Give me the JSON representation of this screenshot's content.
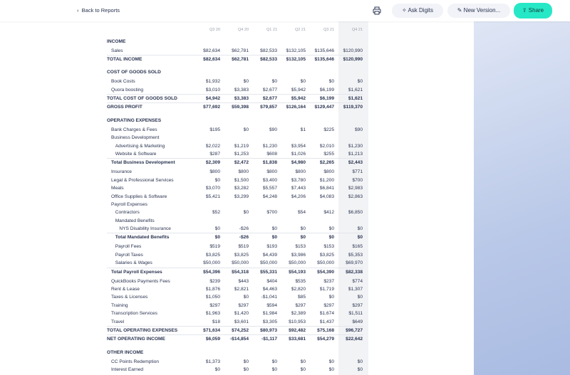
{
  "header": {
    "back": "Back to Reports",
    "buttons": [
      "Ask Digits",
      "New Version...",
      "Share"
    ]
  },
  "table": {
    "columns": [
      "Q3 20",
      "Q4 20",
      "Q1 21",
      "Q2 21",
      "Q3 21",
      "Q4 21"
    ],
    "rows": [
      {
        "label": "INCOME",
        "level": 0,
        "kind": "section"
      },
      {
        "label": "Sales",
        "level": 1,
        "kind": "item",
        "values": [
          "$82,634",
          "$62,781",
          "$82,533",
          "$132,105",
          "$135,646",
          "$120,990"
        ]
      },
      {
        "label": "TOTAL INCOME",
        "level": 0,
        "kind": "grand",
        "values": [
          "$82,634",
          "$62,781",
          "$82,533",
          "$132,105",
          "$135,646",
          "$120,990"
        ]
      },
      {
        "label": "COST OF GOODS SOLD",
        "level": 0,
        "kind": "section"
      },
      {
        "label": "Book Costs",
        "level": 1,
        "kind": "item",
        "values": [
          "$1,932",
          "$0",
          "$0",
          "$0",
          "$0",
          "$0"
        ]
      },
      {
        "label": "Quora boosting",
        "level": 1,
        "kind": "item",
        "values": [
          "$3,010",
          "$3,383",
          "$2,677",
          "$5,942",
          "$6,199",
          "$1,621"
        ]
      },
      {
        "label": "TOTAL COST OF GOODS SOLD",
        "level": 0,
        "kind": "grand",
        "values": [
          "$4,942",
          "$3,383",
          "$2,677",
          "$5,942",
          "$6,199",
          "$1,621"
        ]
      },
      {
        "label": "GROSS PROFIT",
        "level": 0,
        "kind": "grand",
        "values": [
          "$77,692",
          "$59,398",
          "$79,857",
          "$126,164",
          "$129,447",
          "$119,370"
        ]
      },
      {
        "label": "OPERATING EXPENSES",
        "level": 0,
        "kind": "section"
      },
      {
        "label": "Bank Charges & Fees",
        "level": 1,
        "kind": "item",
        "values": [
          "$195",
          "$0",
          "$90",
          "$1",
          "$225",
          "$90"
        ]
      },
      {
        "label": "Business Development",
        "level": 1,
        "kind": "item"
      },
      {
        "label": "Advertising & Marketing",
        "level": 2,
        "kind": "item",
        "values": [
          "$2,022",
          "$1,219",
          "$1,230",
          "$3,954",
          "$2,010",
          "$1,230"
        ]
      },
      {
        "label": "Website & Software",
        "level": 2,
        "kind": "item",
        "values": [
          "$287",
          "$1,253",
          "$608",
          "$1,026",
          "$255",
          "$1,213"
        ]
      },
      {
        "label": "Total Business Development",
        "level": 1,
        "kind": "total",
        "values": [
          "$2,309",
          "$2,472",
          "$1,838",
          "$4,980",
          "$2,265",
          "$2,443"
        ]
      },
      {
        "label": "Insurance",
        "level": 1,
        "kind": "item",
        "values": [
          "$800",
          "$800",
          "$800",
          "$800",
          "$800",
          "$771"
        ]
      },
      {
        "label": "Legal & Professional Services",
        "level": 1,
        "kind": "item",
        "values": [
          "$0",
          "$1,500",
          "$3,400",
          "$3,780",
          "$1,200",
          "$700"
        ]
      },
      {
        "label": "Meals",
        "level": 1,
        "kind": "item",
        "values": [
          "$3,070",
          "$3,282",
          "$5,557",
          "$7,443",
          "$6,841",
          "$2,983"
        ]
      },
      {
        "label": "Office Supplies & Software",
        "level": 1,
        "kind": "item",
        "values": [
          "$5,421",
          "$3,299",
          "$4,248",
          "$4,206",
          "$4,083",
          "$2,863"
        ]
      },
      {
        "label": "Payroll Expenses",
        "level": 1,
        "kind": "item"
      },
      {
        "label": "Contractors",
        "level": 2,
        "kind": "item",
        "values": [
          "$52",
          "$0",
          "$700",
          "$54",
          "$412",
          "$6,850"
        ]
      },
      {
        "label": "Mandated Benefits",
        "level": 2,
        "kind": "item"
      },
      {
        "label": "NYS Disability Insurance",
        "level": 3,
        "kind": "item",
        "values": [
          "$0",
          "-$26",
          "$0",
          "$0",
          "$0",
          "$0"
        ]
      },
      {
        "label": "Total Mandated Benefits",
        "level": 2,
        "kind": "total",
        "values": [
          "$0",
          "-$26",
          "$0",
          "$0",
          "$0",
          "$0"
        ]
      },
      {
        "label": "Payroll Fees",
        "level": 2,
        "kind": "item",
        "values": [
          "$519",
          "$519",
          "$193",
          "$153",
          "$153",
          "$165"
        ]
      },
      {
        "label": "Payroll Taxes",
        "level": 2,
        "kind": "item",
        "values": [
          "$3,825",
          "$3,825",
          "$4,439",
          "$3,986",
          "$3,825",
          "$5,353"
        ]
      },
      {
        "label": "Salaries & Wages",
        "level": 2,
        "kind": "item",
        "values": [
          "$50,000",
          "$50,000",
          "$50,000",
          "$50,000",
          "$50,000",
          "$69,970"
        ]
      },
      {
        "label": "Total Payroll Expenses",
        "level": 1,
        "kind": "total",
        "values": [
          "$54,396",
          "$54,318",
          "$55,331",
          "$54,193",
          "$54,390",
          "$82,338"
        ]
      },
      {
        "label": "QuickBooks Payments Fees",
        "level": 1,
        "kind": "item",
        "values": [
          "$239",
          "$443",
          "$404",
          "$535",
          "$237",
          "$774"
        ]
      },
      {
        "label": "Rent & Lease",
        "level": 1,
        "kind": "item",
        "values": [
          "$1,876",
          "$2,821",
          "$4,463",
          "$2,820",
          "$1,719",
          "$1,307"
        ]
      },
      {
        "label": "Taxes & Licenses",
        "level": 1,
        "kind": "item",
        "values": [
          "$1,050",
          "$0",
          "-$1,041",
          "$85",
          "$0",
          "$0"
        ]
      },
      {
        "label": "Training",
        "level": 1,
        "kind": "item",
        "values": [
          "$297",
          "$297",
          "$594",
          "$297",
          "$297",
          "$297"
        ]
      },
      {
        "label": "Transcription Services",
        "level": 1,
        "kind": "item",
        "values": [
          "$1,963",
          "$1,420",
          "$1,984",
          "$2,389",
          "$1,674",
          "$1,511"
        ]
      },
      {
        "label": "Travel",
        "level": 1,
        "kind": "item",
        "values": [
          "$18",
          "$3,601",
          "$3,305",
          "$10,953",
          "$1,437",
          "$649"
        ]
      },
      {
        "label": "TOTAL OPERATING EXPENSES",
        "level": 0,
        "kind": "grand",
        "values": [
          "$71,634",
          "$74,252",
          "$80,973",
          "$92,482",
          "$75,168",
          "$96,727"
        ]
      },
      {
        "label": "NET OPERATING INCOME",
        "level": 0,
        "kind": "grand",
        "values": [
          "$6,059",
          "-$14,854",
          "-$1,117",
          "$33,681",
          "$54,279",
          "$22,642"
        ]
      },
      {
        "label": "OTHER INCOME",
        "level": 0,
        "kind": "section"
      },
      {
        "label": "CC Points Redemption",
        "level": 1,
        "kind": "item",
        "values": [
          "$1,373",
          "$0",
          "$0",
          "$0",
          "$0",
          "$0"
        ]
      },
      {
        "label": "Interest Earned",
        "level": 1,
        "kind": "item",
        "values": [
          "$0",
          "$0",
          "$0",
          "$0",
          "$0",
          "$0"
        ]
      }
    ]
  }
}
